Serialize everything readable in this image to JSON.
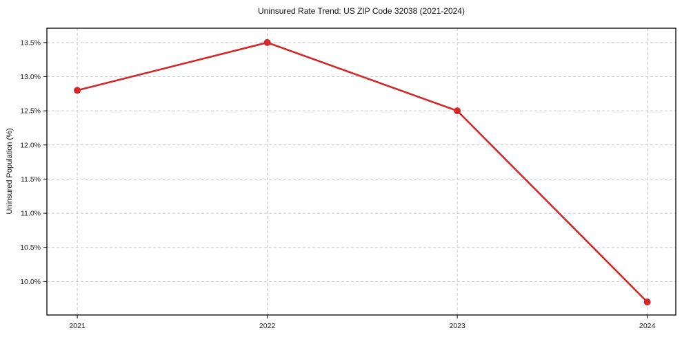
{
  "figure": {
    "title": "Uninsured Rate Trend: US ZIP Code 32038 (2021-2024)",
    "ylabel": "Uninsured Population (%)"
  },
  "chart_data": {
    "type": "line",
    "title": "Uninsured Rate Trend: US ZIP Code 32038 (2021-2024)",
    "xlabel": "",
    "ylabel": "Uninsured Population (%)",
    "x": [
      2021,
      2022,
      2023,
      2024
    ],
    "values": [
      12.8,
      13.5,
      12.5,
      9.7
    ],
    "series_name": "Uninsured rate (%)",
    "xlim": [
      2020.84,
      2024.15
    ],
    "ylim": [
      9.51,
      13.71
    ],
    "xticks": [
      {
        "value": 2021,
        "label": "2021"
      },
      {
        "value": 2022,
        "label": "2022"
      },
      {
        "value": 2023,
        "label": "2023"
      },
      {
        "value": 2024,
        "label": "2024"
      }
    ],
    "yticks": [
      {
        "value": 10.0,
        "label": "10.0%"
      },
      {
        "value": 10.5,
        "label": "10.5%"
      },
      {
        "value": 11.0,
        "label": "11.0%"
      },
      {
        "value": 11.5,
        "label": "11.5%"
      },
      {
        "value": 12.0,
        "label": "12.0%"
      },
      {
        "value": 12.5,
        "label": "12.5%"
      },
      {
        "value": 13.0,
        "label": "13.0%"
      },
      {
        "value": 13.5,
        "label": "13.5%"
      }
    ],
    "grid": true,
    "legend": "none",
    "line_color": "#d62728",
    "marker": "circle",
    "marker_radius": 5,
    "grid_color": "#c9c9c9",
    "background_color": "#ffffff"
  }
}
